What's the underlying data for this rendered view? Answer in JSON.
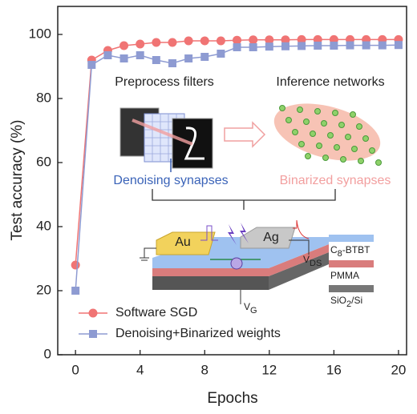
{
  "chart_data": {
    "type": "line",
    "x_label": "Epochs",
    "y_label": "Test accuracy (%)",
    "x": [
      0,
      1,
      2,
      3,
      4,
      5,
      6,
      7,
      8,
      9,
      10,
      11,
      12,
      13,
      14,
      15,
      16,
      17,
      18,
      19,
      20
    ],
    "series": [
      {
        "name": "Software SGD",
        "color": "#f07474",
        "marker": "circle",
        "values": [
          28,
          92,
          95,
          96.5,
          97,
          97.5,
          97.5,
          98,
          98,
          98,
          98.2,
          98.3,
          98.3,
          98.3,
          98.4,
          98.4,
          98.4,
          98.4,
          98.4,
          98.4,
          98.4
        ]
      },
      {
        "name": "Denoising+Binarized weights",
        "color": "#8e9bd2",
        "marker": "square",
        "values": [
          20,
          90.5,
          93.5,
          92.5,
          93.5,
          92,
          91,
          92.5,
          93,
          94,
          96,
          96,
          96.2,
          96.3,
          96.4,
          96.5,
          96.5,
          96.6,
          96.6,
          96.6,
          96.7
        ]
      }
    ],
    "xlim": [
      -1.1,
      20.5
    ],
    "ylim": [
      0,
      108.75
    ],
    "xticks": [
      0,
      4,
      8,
      12,
      16,
      20
    ],
    "yticks": [
      0,
      20,
      40,
      60,
      80,
      100
    ],
    "grid": false,
    "legend": "lower left",
    "inset": {
      "preprocess": "Preprocess filters",
      "inference": "Inference networks",
      "denoising": "Denoising synapses",
      "binarized": "Binarized synapses",
      "electrode_left": "Au",
      "electrode_right": "Ag",
      "layers": [
        {
          "text": "C",
          "sub": "8",
          "tail": "-BTBT"
        },
        {
          "text": "PMMA"
        },
        {
          "text": "SiO",
          "sub": "2",
          "tail": "/Si"
        }
      ],
      "vds": {
        "text": "V",
        "sub": "DS"
      },
      "vg": {
        "text": "V",
        "sub": "G"
      }
    }
  }
}
